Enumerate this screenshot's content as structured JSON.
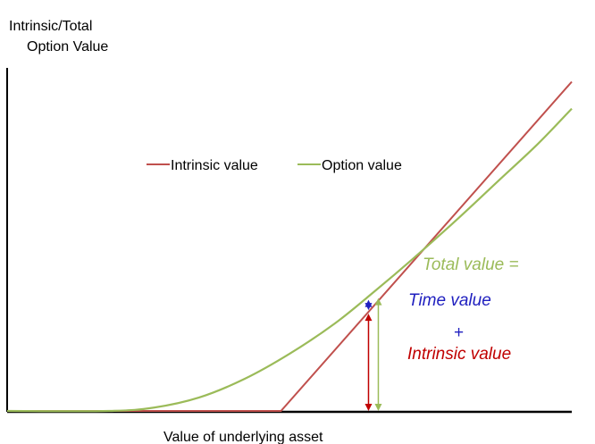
{
  "chart_data": {
    "type": "line",
    "title": "",
    "ylabel_lines": [
      "Intrinsic/Total",
      "Option Value"
    ],
    "xlabel": "Value of underlying asset",
    "legend_position": "upper-center",
    "series": [
      {
        "name": "Intrinsic value",
        "color": "#c0504d",
        "x": [
          0,
          0.485,
          1.0
        ],
        "y": [
          0,
          0,
          0.98
        ]
      },
      {
        "name": "Option value",
        "color": "#9bbb59",
        "x": [
          0,
          0.18,
          0.26,
          0.34,
          0.42,
          0.5,
          0.58,
          0.65,
          0.72,
          0.8,
          0.87,
          0.94,
          1.0
        ],
        "y": [
          0,
          0,
          0.01,
          0.04,
          0.095,
          0.17,
          0.26,
          0.355,
          0.455,
          0.575,
          0.685,
          0.795,
          0.9
        ]
      }
    ],
    "annotations": {
      "total_value": {
        "text": "Total value =",
        "color": "#9bbb59"
      },
      "time_value": {
        "text": "Time value",
        "color": "#1f1fbf"
      },
      "plus": {
        "text": "+",
        "color": "#1f1fbf"
      },
      "intrinsic_value": {
        "text": "Intrinsic value",
        "color": "#c00000"
      }
    },
    "marker_x": 0.64,
    "axis_color": "#000000"
  }
}
